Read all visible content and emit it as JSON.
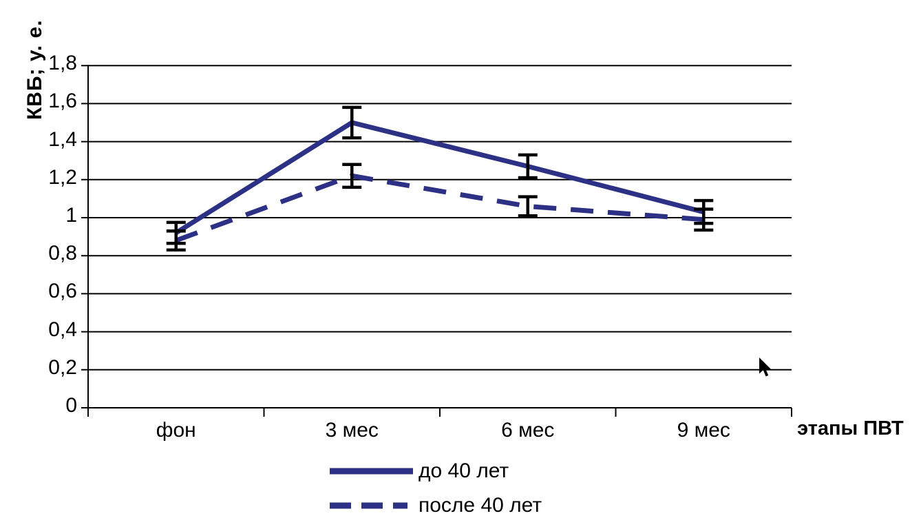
{
  "chart_data": {
    "type": "line",
    "title": "",
    "xlabel": "этапы ПВТ",
    "ylabel": "КВБ; у. е.",
    "categories": [
      "фон",
      "3 мес",
      "6 мес",
      "9 мес"
    ],
    "y_axis": {
      "labels": [
        "0",
        "0,2",
        "0,4",
        "0,6",
        "0,8",
        "1",
        "1,2",
        "1,4",
        "1,6",
        "1,8"
      ],
      "values": [
        0,
        0.2,
        0.4,
        0.6,
        0.8,
        1,
        1.2,
        1.4,
        1.6,
        1.8
      ]
    },
    "ylim": [
      0,
      1.8
    ],
    "grid": "horizontal",
    "legend_position": "bottom",
    "axis_color": "#000000",
    "error_bar_color": "#000000",
    "series": [
      {
        "name": "до 40 лет",
        "style": "solid",
        "color": "#2d3186",
        "values": [
          0.92,
          1.5,
          1.27,
          1.03
        ],
        "error": [
          0.055,
          0.08,
          0.06,
          0.06
        ]
      },
      {
        "name": "после 40 лет",
        "style": "dashed",
        "color": "#2d3186",
        "values": [
          0.88,
          1.22,
          1.06,
          0.99
        ],
        "error": [
          0.05,
          0.06,
          0.05,
          0.055
        ]
      }
    ]
  }
}
